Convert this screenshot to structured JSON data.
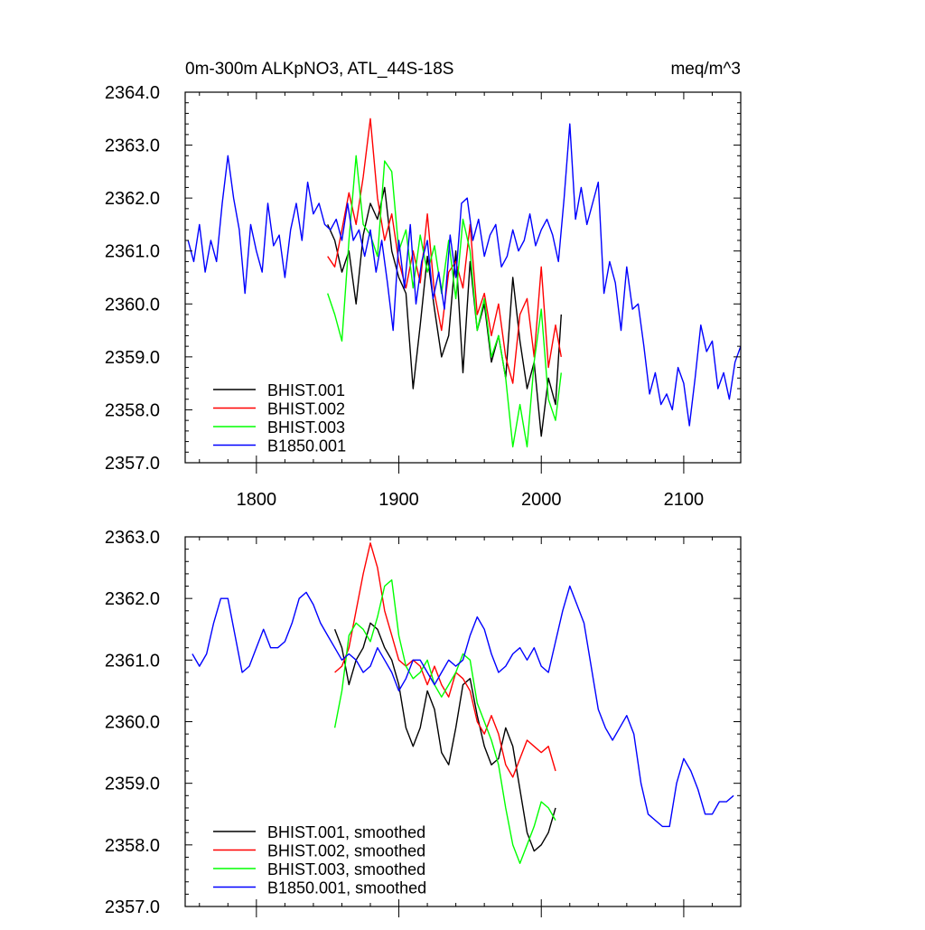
{
  "chart_data": [
    {
      "type": "line",
      "title": "0m-300m ALKpNO3, ATL_44S-18S",
      "units_label": "meq/m^3",
      "xlim": [
        1750,
        2140
      ],
      "ylim": [
        2357.0,
        2364.0
      ],
      "xticks": [
        1800,
        1900,
        2000,
        2100
      ],
      "yticks": [
        2357.0,
        2358.0,
        2359.0,
        2360.0,
        2361.0,
        2362.0,
        2363.0,
        2364.0
      ],
      "xtick_labels": [
        "1800",
        "1900",
        "2000",
        "2100"
      ],
      "ytick_labels": [
        "2357.0",
        "2358.0",
        "2359.0",
        "2360.0",
        "2361.0",
        "2362.0",
        "2363.0",
        "2364.0"
      ],
      "legend_position": "bottom-left",
      "series": [
        {
          "name": "BHIST.001",
          "color": "#000000",
          "x": [
            1850,
            1855,
            1860,
            1865,
            1870,
            1875,
            1880,
            1885,
            1890,
            1895,
            1900,
            1905,
            1910,
            1915,
            1920,
            1925,
            1930,
            1935,
            1940,
            1945,
            1950,
            1955,
            1960,
            1965,
            1970,
            1975,
            1980,
            1985,
            1990,
            1995,
            2000,
            2005,
            2010,
            2014
          ],
          "y": [
            2361.5,
            2361.2,
            2360.6,
            2361.0,
            2360.0,
            2361.3,
            2361.9,
            2361.6,
            2362.2,
            2361.0,
            2360.5,
            2360.2,
            2358.4,
            2359.6,
            2360.9,
            2359.9,
            2359.0,
            2359.4,
            2361.0,
            2358.7,
            2360.8,
            2359.5,
            2360.0,
            2358.9,
            2359.4,
            2358.6,
            2360.5,
            2359.3,
            2358.4,
            2358.9,
            2357.5,
            2358.6,
            2358.1,
            2359.8
          ]
        },
        {
          "name": "BHIST.002",
          "color": "#ff0000",
          "x": [
            1850,
            1855,
            1860,
            1865,
            1870,
            1875,
            1880,
            1885,
            1890,
            1895,
            1900,
            1905,
            1910,
            1915,
            1920,
            1925,
            1930,
            1935,
            1940,
            1945,
            1950,
            1955,
            1960,
            1965,
            1970,
            1975,
            1980,
            1985,
            1990,
            1995,
            2000,
            2005,
            2010,
            2014
          ],
          "y": [
            2360.9,
            2360.7,
            2361.4,
            2362.1,
            2361.5,
            2362.4,
            2363.5,
            2362.0,
            2361.2,
            2361.7,
            2360.8,
            2360.3,
            2361.0,
            2360.4,
            2361.7,
            2360.2,
            2359.5,
            2360.6,
            2360.8,
            2360.3,
            2361.5,
            2359.8,
            2360.2,
            2359.4,
            2360.0,
            2359.0,
            2358.5,
            2359.8,
            2360.1,
            2359.0,
            2360.7,
            2358.8,
            2359.6,
            2359.0
          ]
        },
        {
          "name": "BHIST.003",
          "color": "#00ff00",
          "x": [
            1850,
            1855,
            1860,
            1865,
            1870,
            1875,
            1880,
            1885,
            1890,
            1895,
            1900,
            1905,
            1910,
            1915,
            1920,
            1925,
            1930,
            1935,
            1940,
            1945,
            1950,
            1955,
            1960,
            1965,
            1970,
            1975,
            1980,
            1985,
            1990,
            1995,
            2000,
            2005,
            2010,
            2014
          ],
          "y": [
            2360.2,
            2359.8,
            2359.3,
            2361.2,
            2362.8,
            2361.5,
            2361.3,
            2360.9,
            2362.7,
            2362.5,
            2361.0,
            2361.4,
            2360.3,
            2361.3,
            2360.6,
            2361.1,
            2360.2,
            2361.2,
            2360.1,
            2361.6,
            2361.0,
            2359.5,
            2360.1,
            2359.0,
            2359.4,
            2358.6,
            2357.3,
            2358.1,
            2357.3,
            2358.9,
            2359.9,
            2358.2,
            2357.8,
            2358.7
          ]
        },
        {
          "name": "B1850.001",
          "color": "#0000ff",
          "x": [
            1752,
            1756,
            1760,
            1764,
            1768,
            1772,
            1776,
            1780,
            1784,
            1788,
            1792,
            1796,
            1800,
            1804,
            1808,
            1812,
            1816,
            1820,
            1824,
            1828,
            1832,
            1836,
            1840,
            1844,
            1848,
            1852,
            1856,
            1860,
            1864,
            1868,
            1872,
            1876,
            1880,
            1884,
            1888,
            1892,
            1896,
            1900,
            1904,
            1908,
            1912,
            1916,
            1920,
            1924,
            1928,
            1932,
            1936,
            1940,
            1944,
            1948,
            1952,
            1956,
            1960,
            1964,
            1968,
            1972,
            1976,
            1980,
            1984,
            1988,
            1992,
            1996,
            2000,
            2004,
            2008,
            2012,
            2016,
            2020,
            2024,
            2028,
            2032,
            2036,
            2040,
            2044,
            2048,
            2052,
            2056,
            2060,
            2064,
            2068,
            2072,
            2076,
            2080,
            2084,
            2088,
            2092,
            2096,
            2100,
            2104,
            2108,
            2112,
            2116,
            2120,
            2124,
            2128,
            2132,
            2136,
            2140
          ],
          "y": [
            2361.2,
            2360.8,
            2361.5,
            2360.6,
            2361.2,
            2360.8,
            2361.9,
            2362.8,
            2362.0,
            2361.4,
            2360.2,
            2361.5,
            2361.0,
            2360.6,
            2361.9,
            2361.1,
            2361.3,
            2360.5,
            2361.4,
            2361.9,
            2361.2,
            2362.3,
            2361.7,
            2361.9,
            2361.5,
            2361.4,
            2361.6,
            2361.2,
            2361.9,
            2361.2,
            2361.4,
            2360.9,
            2361.4,
            2360.6,
            2361.2,
            2360.4,
            2359.5,
            2361.2,
            2360.3,
            2361.5,
            2360.0,
            2360.8,
            2361.2,
            2360.1,
            2360.6,
            2359.9,
            2361.3,
            2360.5,
            2361.9,
            2362.0,
            2361.2,
            2361.6,
            2360.9,
            2361.3,
            2361.5,
            2360.7,
            2360.9,
            2361.4,
            2361.0,
            2361.2,
            2361.7,
            2361.1,
            2361.4,
            2361.6,
            2361.3,
            2360.8,
            2362.0,
            2363.4,
            2361.6,
            2362.2,
            2361.5,
            2361.9,
            2362.3,
            2360.2,
            2360.8,
            2360.4,
            2359.5,
            2360.7,
            2359.9,
            2360.0,
            2359.2,
            2358.3,
            2358.7,
            2358.1,
            2358.3,
            2358.0,
            2358.8,
            2358.5,
            2357.7,
            2358.6,
            2359.6,
            2359.1,
            2359.3,
            2358.4,
            2358.7,
            2358.2,
            2358.9,
            2359.2
          ]
        }
      ]
    },
    {
      "type": "line",
      "xlim": [
        1750,
        2140
      ],
      "ylim": [
        2357.0,
        2363.0
      ],
      "xticks": [
        1800,
        1900,
        2000,
        2100
      ],
      "yticks": [
        2357.0,
        2358.0,
        2359.0,
        2360.0,
        2361.0,
        2362.0,
        2363.0
      ],
      "ytick_labels": [
        "2357.0",
        "2358.0",
        "2359.0",
        "2360.0",
        "2361.0",
        "2362.0",
        "2363.0"
      ],
      "legend_position": "bottom-left",
      "series": [
        {
          "name": "BHIST.001, smoothed",
          "color": "#000000",
          "x": [
            1855,
            1860,
            1865,
            1870,
            1875,
            1880,
            1885,
            1890,
            1895,
            1900,
            1905,
            1910,
            1915,
            1920,
            1925,
            1930,
            1935,
            1940,
            1945,
            1950,
            1955,
            1960,
            1965,
            1970,
            1975,
            1980,
            1985,
            1990,
            1995,
            2000,
            2005,
            2010
          ],
          "y": [
            2361.5,
            2361.2,
            2360.6,
            2361.0,
            2361.2,
            2361.6,
            2361.5,
            2361.2,
            2361.0,
            2360.6,
            2359.9,
            2359.6,
            2359.9,
            2360.5,
            2360.2,
            2359.5,
            2359.3,
            2359.9,
            2360.6,
            2360.7,
            2360.1,
            2359.6,
            2359.3,
            2359.4,
            2359.9,
            2359.6,
            2358.9,
            2358.2,
            2357.9,
            2358.0,
            2358.2,
            2358.6
          ]
        },
        {
          "name": "BHIST.002, smoothed",
          "color": "#ff0000",
          "x": [
            1855,
            1860,
            1865,
            1870,
            1875,
            1880,
            1885,
            1890,
            1895,
            1900,
            1905,
            1910,
            1915,
            1920,
            1925,
            1930,
            1935,
            1940,
            1945,
            1950,
            1955,
            1960,
            1965,
            1970,
            1975,
            1980,
            1985,
            1990,
            1995,
            2000,
            2005,
            2010
          ],
          "y": [
            2360.8,
            2360.9,
            2361.2,
            2361.8,
            2362.4,
            2362.9,
            2362.5,
            2361.8,
            2361.4,
            2361.0,
            2360.9,
            2361.0,
            2360.9,
            2360.6,
            2360.9,
            2360.6,
            2360.4,
            2360.8,
            2360.7,
            2360.5,
            2360.0,
            2359.8,
            2360.1,
            2359.8,
            2359.3,
            2359.1,
            2359.4,
            2359.7,
            2359.6,
            2359.5,
            2359.6,
            2359.2
          ]
        },
        {
          "name": "BHIST.003, smoothed",
          "color": "#00ff00",
          "x": [
            1855,
            1860,
            1865,
            1870,
            1875,
            1880,
            1885,
            1890,
            1895,
            1900,
            1905,
            1910,
            1915,
            1920,
            1925,
            1930,
            1935,
            1940,
            1945,
            1950,
            1955,
            1960,
            1965,
            1970,
            1975,
            1980,
            1985,
            1990,
            1995,
            2000,
            2005,
            2010
          ],
          "y": [
            2359.9,
            2360.5,
            2361.4,
            2361.6,
            2361.5,
            2361.3,
            2361.7,
            2362.2,
            2362.3,
            2361.4,
            2360.9,
            2360.7,
            2360.8,
            2361.0,
            2360.6,
            2360.4,
            2360.6,
            2360.8,
            2361.1,
            2361.0,
            2360.3,
            2360.0,
            2359.7,
            2359.3,
            2358.6,
            2358.0,
            2357.7,
            2358.0,
            2358.3,
            2358.7,
            2358.6,
            2358.4
          ]
        },
        {
          "name": "B1850.001, smoothed",
          "color": "#0000ff",
          "x": [
            1755,
            1760,
            1765,
            1770,
            1775,
            1780,
            1785,
            1790,
            1795,
            1800,
            1805,
            1810,
            1815,
            1820,
            1825,
            1830,
            1835,
            1840,
            1845,
            1850,
            1855,
            1860,
            1865,
            1870,
            1875,
            1880,
            1885,
            1890,
            1895,
            1900,
            1905,
            1910,
            1915,
            1920,
            1925,
            1930,
            1935,
            1940,
            1945,
            1950,
            1955,
            1960,
            1965,
            1970,
            1975,
            1980,
            1985,
            1990,
            1995,
            2000,
            2005,
            2010,
            2015,
            2020,
            2025,
            2030,
            2035,
            2040,
            2045,
            2050,
            2055,
            2060,
            2065,
            2070,
            2075,
            2080,
            2085,
            2090,
            2095,
            2100,
            2105,
            2110,
            2115,
            2120,
            2125,
            2130,
            2135
          ],
          "y": [
            2361.1,
            2360.9,
            2361.1,
            2361.6,
            2362.0,
            2362.0,
            2361.4,
            2360.8,
            2360.9,
            2361.2,
            2361.5,
            2361.2,
            2361.2,
            2361.3,
            2361.6,
            2362.0,
            2362.1,
            2361.9,
            2361.6,
            2361.4,
            2361.2,
            2361.0,
            2361.1,
            2361.0,
            2360.8,
            2360.9,
            2361.2,
            2361.0,
            2360.8,
            2360.5,
            2360.7,
            2361.0,
            2361.0,
            2360.8,
            2360.6,
            2360.8,
            2361.0,
            2360.9,
            2361.0,
            2361.4,
            2361.7,
            2361.5,
            2361.1,
            2360.8,
            2360.9,
            2361.1,
            2361.2,
            2361.0,
            2361.2,
            2360.9,
            2360.8,
            2361.3,
            2361.8,
            2362.2,
            2361.9,
            2361.6,
            2360.9,
            2360.2,
            2359.9,
            2359.7,
            2359.9,
            2360.1,
            2359.8,
            2359.0,
            2358.5,
            2358.4,
            2358.3,
            2358.3,
            2359.0,
            2359.4,
            2359.2,
            2358.9,
            2358.5,
            2358.5,
            2358.7,
            2358.7,
            2358.8
          ]
        }
      ]
    }
  ]
}
